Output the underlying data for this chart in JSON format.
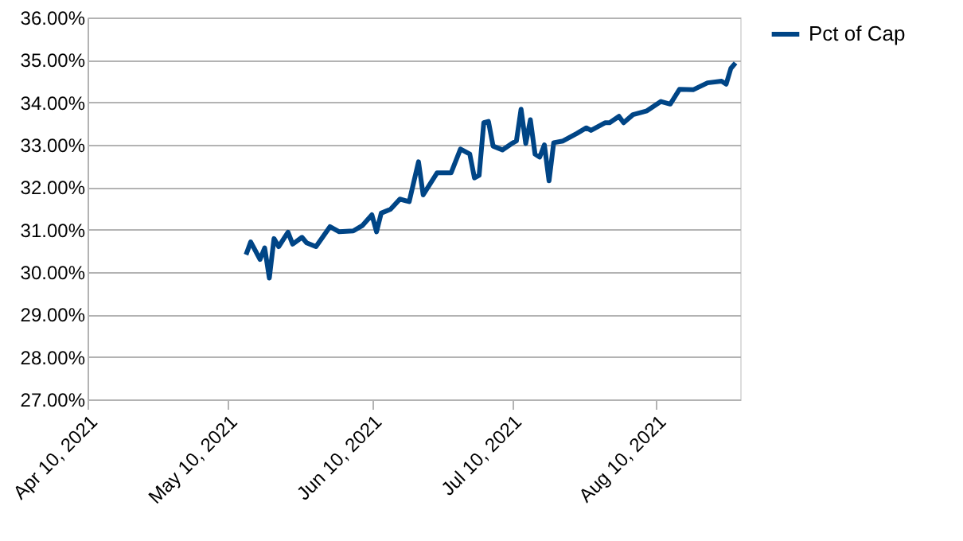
{
  "chart_data": {
    "type": "line",
    "grid": "y",
    "legend": "right",
    "line_style": "solid",
    "marker": "none",
    "xlim": [
      "2021-04-10",
      "2021-08-28"
    ],
    "xticks": [
      {
        "value": "2021-04-10",
        "label": "Apr 10, 2021"
      },
      {
        "value": "2021-05-10",
        "label": "May 10, 2021"
      },
      {
        "value": "2021-06-10",
        "label": "Jun 10, 2021"
      },
      {
        "value": "2021-07-10",
        "label": "Jul 10, 2021"
      },
      {
        "value": "2021-08-10",
        "label": "Aug 10, 2021"
      }
    ],
    "ylim": [
      27,
      36
    ],
    "yticks": [
      {
        "value": 27,
        "label": "27.00%"
      },
      {
        "value": 28,
        "label": "28.00%"
      },
      {
        "value": 29,
        "label": "29.00%"
      },
      {
        "value": 30,
        "label": "30.00%"
      },
      {
        "value": 31,
        "label": "31.00%"
      },
      {
        "value": 32,
        "label": "32.00%"
      },
      {
        "value": 33,
        "label": "33.00%"
      },
      {
        "value": 34,
        "label": "34.00%"
      },
      {
        "value": 35,
        "label": "35.00%"
      },
      {
        "value": 36,
        "label": "36.00%"
      }
    ],
    "x": [
      "2021-05-14",
      "2021-05-15",
      "2021-05-17",
      "2021-05-18",
      "2021-05-19",
      "2021-05-20",
      "2021-05-21",
      "2021-05-23",
      "2021-05-24",
      "2021-05-26",
      "2021-05-27",
      "2021-05-29",
      "2021-06-01",
      "2021-06-03",
      "2021-06-06",
      "2021-06-08",
      "2021-06-10",
      "2021-06-11",
      "2021-06-12",
      "2021-06-14",
      "2021-06-16",
      "2021-06-18",
      "2021-06-20",
      "2021-06-21",
      "2021-06-24",
      "2021-06-27",
      "2021-06-29",
      "2021-07-01",
      "2021-07-02",
      "2021-07-03",
      "2021-07-04",
      "2021-07-05",
      "2021-07-06",
      "2021-07-08",
      "2021-07-10",
      "2021-07-11",
      "2021-07-12",
      "2021-07-13",
      "2021-07-14",
      "2021-07-15",
      "2021-07-16",
      "2021-07-17",
      "2021-07-18",
      "2021-07-19",
      "2021-07-21",
      "2021-07-24",
      "2021-07-26",
      "2021-07-27",
      "2021-07-30",
      "2021-07-31",
      "2021-08-02",
      "2021-08-03",
      "2021-08-05",
      "2021-08-08",
      "2021-08-11",
      "2021-08-13",
      "2021-08-15",
      "2021-08-18",
      "2021-08-21",
      "2021-08-24",
      "2021-08-25",
      "2021-08-26",
      "2021-08-27"
    ],
    "series": [
      {
        "name": "Pct of Cap",
        "color": "#004586",
        "values": [
          30.41,
          30.71,
          30.3,
          30.57,
          29.86,
          30.79,
          30.6,
          30.94,
          30.66,
          30.82,
          30.69,
          30.6,
          31.07,
          30.95,
          30.97,
          31.1,
          31.35,
          30.95,
          31.39,
          31.48,
          31.72,
          31.66,
          32.6,
          31.82,
          32.34,
          32.34,
          32.9,
          32.78,
          32.22,
          32.28,
          33.52,
          33.55,
          32.97,
          32.88,
          33.03,
          33.09,
          33.84,
          33.03,
          33.59,
          32.78,
          32.71,
          33.0,
          32.15,
          33.05,
          33.09,
          33.27,
          33.4,
          33.34,
          33.52,
          33.52,
          33.67,
          33.52,
          33.71,
          33.8,
          34.02,
          33.96,
          34.31,
          34.3,
          34.46,
          34.5,
          34.43,
          34.8,
          34.93
        ]
      }
    ]
  }
}
